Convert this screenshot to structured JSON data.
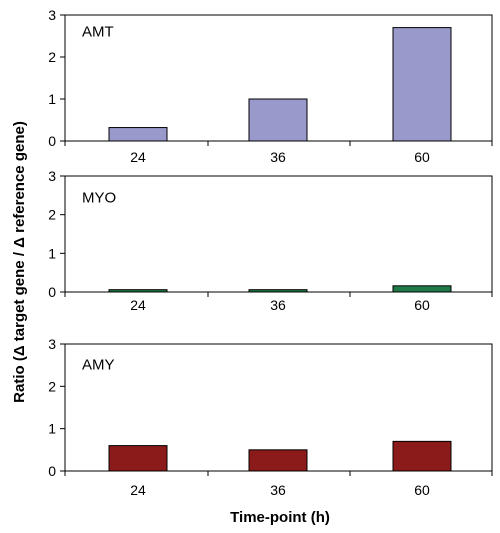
{
  "figure": {
    "ylabel": "Ratio (Δ target gene / Δ reference gene)",
    "xlabel": "Time-point (h)"
  },
  "chart_data": [
    {
      "type": "bar",
      "title": "AMT",
      "categories": [
        "24",
        "36",
        "60"
      ],
      "values": [
        0.32,
        1.0,
        2.7
      ],
      "ylim": [
        0,
        3
      ],
      "yticks": [
        "0",
        "1",
        "2",
        "3"
      ],
      "color": "#9999cc"
    },
    {
      "type": "bar",
      "title": "MYO",
      "categories": [
        "24",
        "36",
        "60"
      ],
      "values": [
        0.06,
        0.06,
        0.16
      ],
      "ylim": [
        0,
        3
      ],
      "yticks": [
        "0",
        "1",
        "2",
        "3"
      ],
      "color": "#1e7a46"
    },
    {
      "type": "bar",
      "title": "AMY",
      "categories": [
        "24",
        "36",
        "60"
      ],
      "values": [
        0.6,
        0.5,
        0.7
      ],
      "ylim": [
        0,
        3
      ],
      "yticks": [
        "0",
        "1",
        "2",
        "3"
      ],
      "color": "#8b1a1a"
    }
  ]
}
